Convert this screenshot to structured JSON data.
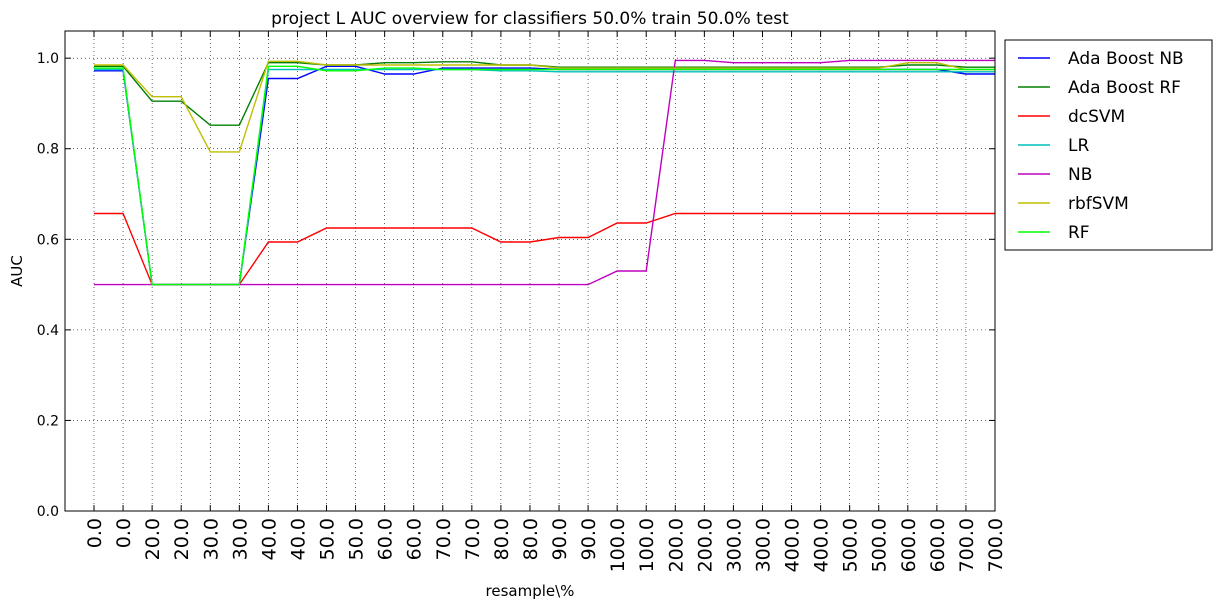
{
  "chart_data": {
    "type": "line",
    "title": "project L AUC overview for classifiers 50.0% train 50.0% test",
    "xlabel": "resample\\%",
    "ylabel": "AUC",
    "categories": [
      "0.0",
      "0.0",
      "20.0",
      "20.0",
      "30.0",
      "30.0",
      "40.0",
      "40.0",
      "50.0",
      "50.0",
      "60.0",
      "60.0",
      "70.0",
      "70.0",
      "80.0",
      "80.0",
      "90.0",
      "90.0",
      "100.0",
      "100.0",
      "200.0",
      "200.0",
      "300.0",
      "300.0",
      "400.0",
      "400.0",
      "500.0",
      "500.0",
      "600.0",
      "600.0",
      "700.0",
      "700.0"
    ],
    "ylim": [
      0.0,
      1.06
    ],
    "yticks": [
      "0.0",
      "0.2",
      "0.4",
      "0.6",
      "0.8",
      "1.0"
    ],
    "ytick_values": [
      0.0,
      0.2,
      0.4,
      0.6,
      0.8,
      1.0
    ],
    "grid": true,
    "legend_position": "outside-top-right",
    "series": [
      {
        "name": "Ada Boost NB",
        "color": "#0000ff",
        "values": [
          0.972,
          0.972,
          0.5,
          0.5,
          0.5,
          0.5,
          0.955,
          0.955,
          0.982,
          0.982,
          0.965,
          0.965,
          0.978,
          0.978,
          0.978,
          0.978,
          0.975,
          0.975,
          0.975,
          0.975,
          0.975,
          0.975,
          0.975,
          0.975,
          0.975,
          0.975,
          0.975,
          0.975,
          0.975,
          0.975,
          0.965,
          0.965
        ]
      },
      {
        "name": "Ada Boost RF",
        "color": "#008000",
        "values": [
          0.982,
          0.982,
          0.905,
          0.905,
          0.852,
          0.852,
          0.99,
          0.99,
          0.985,
          0.985,
          0.99,
          0.99,
          0.992,
          0.992,
          0.985,
          0.985,
          0.98,
          0.98,
          0.98,
          0.98,
          0.98,
          0.98,
          0.98,
          0.98,
          0.98,
          0.98,
          0.98,
          0.98,
          0.985,
          0.985,
          0.98,
          0.98
        ]
      },
      {
        "name": "dcSVM",
        "color": "#ff0000",
        "values": [
          0.657,
          0.657,
          0.5,
          0.5,
          0.5,
          0.5,
          0.594,
          0.594,
          0.625,
          0.625,
          0.625,
          0.625,
          0.625,
          0.625,
          0.594,
          0.594,
          0.604,
          0.604,
          0.636,
          0.636,
          0.657,
          0.657,
          0.657,
          0.657,
          0.657,
          0.657,
          0.657,
          0.657,
          0.657,
          0.657,
          0.657,
          0.657
        ]
      },
      {
        "name": "LR",
        "color": "#00bfbf",
        "values": [
          0.975,
          0.975,
          0.5,
          0.5,
          0.5,
          0.5,
          0.975,
          0.975,
          0.975,
          0.975,
          0.975,
          0.975,
          0.975,
          0.975,
          0.972,
          0.972,
          0.97,
          0.97,
          0.97,
          0.97,
          0.97,
          0.97,
          0.97,
          0.97,
          0.97,
          0.97,
          0.97,
          0.97,
          0.97,
          0.97,
          0.97,
          0.97
        ]
      },
      {
        "name": "NB",
        "color": "#bf00bf",
        "values": [
          0.5,
          0.5,
          0.5,
          0.5,
          0.5,
          0.5,
          0.5,
          0.5,
          0.5,
          0.5,
          0.5,
          0.5,
          0.5,
          0.5,
          0.5,
          0.5,
          0.5,
          0.5,
          0.53,
          0.53,
          0.995,
          0.995,
          0.99,
          0.99,
          0.99,
          0.99,
          0.995,
          0.995,
          0.995,
          0.995,
          0.995,
          0.995
        ]
      },
      {
        "name": "rbfSVM",
        "color": "#bfbf00",
        "values": [
          0.985,
          0.985,
          0.915,
          0.915,
          0.793,
          0.793,
          0.993,
          0.993,
          0.985,
          0.985,
          0.985,
          0.985,
          0.985,
          0.985,
          0.985,
          0.985,
          0.978,
          0.978,
          0.978,
          0.978,
          0.978,
          0.978,
          0.978,
          0.978,
          0.978,
          0.978,
          0.978,
          0.978,
          0.99,
          0.99,
          0.975,
          0.975
        ]
      },
      {
        "name": "RF",
        "color": "#00ff00",
        "values": [
          0.978,
          0.978,
          0.5,
          0.5,
          0.5,
          0.5,
          0.982,
          0.982,
          0.972,
          0.972,
          0.978,
          0.978,
          0.975,
          0.975,
          0.975,
          0.975,
          0.975,
          0.975,
          0.975,
          0.975,
          0.975,
          0.975,
          0.975,
          0.975,
          0.975,
          0.975,
          0.975,
          0.975,
          0.975,
          0.975,
          0.975,
          0.975
        ]
      }
    ]
  }
}
